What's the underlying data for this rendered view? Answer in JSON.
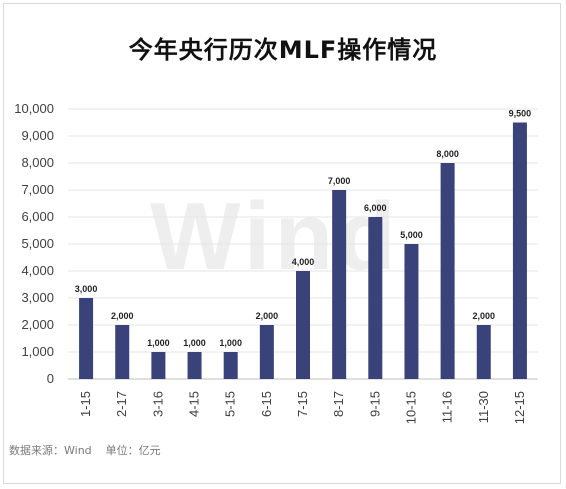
{
  "chart_title": "今年央行历次MLF操作情况",
  "watermark_text": "Wind",
  "footer": {
    "source": "数据来源：Wind",
    "unit": "单位：亿元"
  },
  "colors": {
    "bar": "#3a4379",
    "grid": "#e6e6e6",
    "axis_text": "#404040"
  },
  "chart_data": {
    "type": "bar",
    "title": "今年央行历次MLF操作情况",
    "categories": [
      "1-15",
      "2-17",
      "3-16",
      "4-15",
      "5-15",
      "6-15",
      "7-15",
      "8-17",
      "9-15",
      "10-15",
      "11-16",
      "11-30",
      "12-15"
    ],
    "values": [
      3000,
      2000,
      1000,
      1000,
      1000,
      2000,
      4000,
      7000,
      6000,
      5000,
      8000,
      2000,
      9500
    ],
    "data_labels": [
      "3,000",
      "2,000",
      "1,000",
      "1,000",
      "1,000",
      "2,000",
      "4,000",
      "7,000",
      "6,000",
      "5,000",
      "8,000",
      "2,000",
      "9,500"
    ],
    "ylim": [
      0,
      10000
    ],
    "yticks": [
      0,
      1000,
      2000,
      3000,
      4000,
      5000,
      6000,
      7000,
      8000,
      9000,
      10000
    ],
    "ytick_labels": [
      "0",
      "1,000",
      "2,000",
      "3,000",
      "4,000",
      "5,000",
      "6,000",
      "7,000",
      "8,000",
      "9,000",
      "10,000"
    ],
    "grid": true,
    "legend": "none",
    "xlabel": "",
    "ylabel": ""
  }
}
